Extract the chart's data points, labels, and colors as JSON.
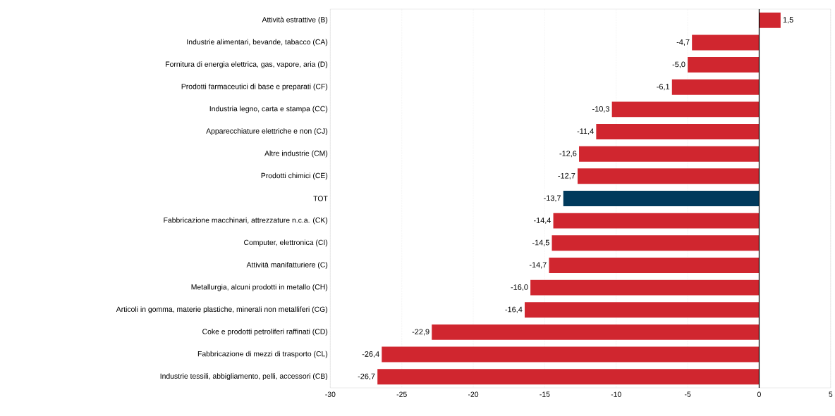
{
  "chart_data": {
    "type": "bar",
    "orientation": "horizontal",
    "categories": [
      "Attività estrattive (B)",
      "Industrie alimentari, bevande, tabacco (CA)",
      "Fornitura di energia elettrica, gas, vapore, aria (D)",
      "Prodotti farmaceutici di base e preparati (CF)",
      "Industria legno, carta e stampa (CC)",
      "Apparecchiature elettriche e non (CJ)",
      "Altre industrie (CM)",
      "Prodotti chimici (CE)",
      "TOT",
      "Fabbricazione macchinari, attrezzature n.c.a. (CK)",
      "Computer, elettronica (CI)",
      "Attività manifatturiere (C)",
      "Metallurgia, alcuni prodotti in metallo (CH)",
      "Articoli in gomma, materie plastiche, minerali non metalliferi (CG)",
      "Coke e prodotti petroliferi raffinati (CD)",
      "Fabbricazione di mezzi di trasporto (CL)",
      "Industrie tessili, abbigliamento, pelli, accessori (CB)"
    ],
    "values": [
      1.5,
      -4.7,
      -5.0,
      -6.1,
      -10.3,
      -11.4,
      -12.6,
      -12.7,
      -13.7,
      -14.4,
      -14.5,
      -14.7,
      -16.0,
      -16.4,
      -22.9,
      -26.4,
      -26.7
    ],
    "value_labels": [
      "1,5",
      "-4,7",
      "-5,0",
      "-6,1",
      "-10,3",
      "-11,4",
      "-12,6",
      "-12,7",
      "-13,7",
      "-14,4",
      "-14,5",
      "-14,7",
      "-16,0",
      "-16,4",
      "-22,9",
      "-26,4",
      "-26,7"
    ],
    "colors": [
      "#d0262f",
      "#d0262f",
      "#d0262f",
      "#d0262f",
      "#d0262f",
      "#d0262f",
      "#d0262f",
      "#d0262f",
      "#003a5c",
      "#d0262f",
      "#d0262f",
      "#d0262f",
      "#d0262f",
      "#d0262f",
      "#d0262f",
      "#d0262f",
      "#d0262f"
    ],
    "xlim": [
      -30,
      5
    ],
    "xticks": [
      -30,
      -25,
      -20,
      -15,
      -10,
      -5,
      0,
      5
    ],
    "grid": "x",
    "ref_lines": [
      {
        "axis": "x",
        "value": 0,
        "color": "#000000"
      }
    ]
  }
}
